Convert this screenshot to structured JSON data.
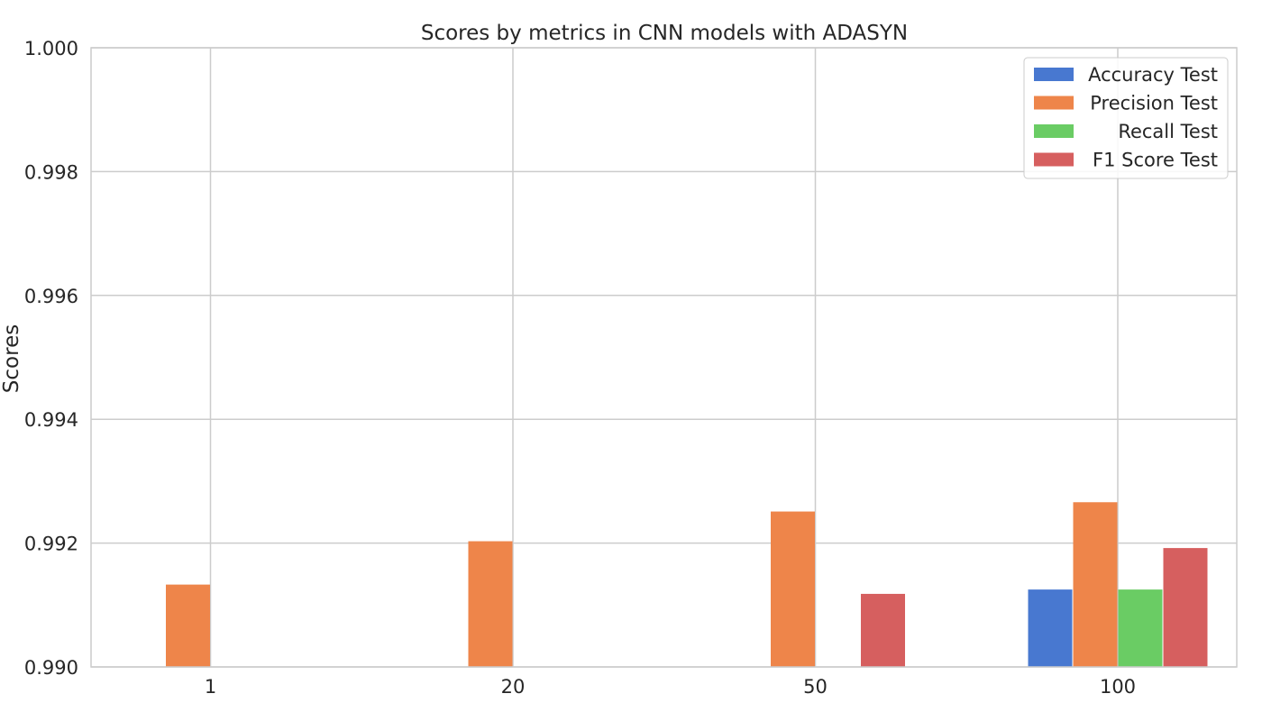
{
  "chart_data": {
    "type": "bar",
    "title": "Scores by metrics in CNN models with ADASYN",
    "xlabel": "",
    "ylabel": "Scores",
    "categories": [
      "1",
      "20",
      "50",
      "100"
    ],
    "ylim": [
      0.99,
      1.0
    ],
    "yticks": [
      "0.990",
      "0.992",
      "0.994",
      "0.996",
      "0.998",
      "1.000"
    ],
    "grid": true,
    "legend_position": "top-right",
    "series": [
      {
        "name": "Accuracy Test",
        "color": "#4878d0",
        "values": [
          0.9895,
          0.9895,
          0.9895,
          0.99125
        ]
      },
      {
        "name": "Precision Test",
        "color": "#ee854a",
        "values": [
          0.99133,
          0.99203,
          0.99251,
          0.99266
        ]
      },
      {
        "name": "Recall Test",
        "color": "#6acc64",
        "values": [
          0.9895,
          0.9895,
          0.9895,
          0.99125
        ]
      },
      {
        "name": "F1 Score Test",
        "color": "#d65f5f",
        "values": [
          0.9895,
          0.9895,
          0.99118,
          0.99192
        ]
      }
    ]
  }
}
